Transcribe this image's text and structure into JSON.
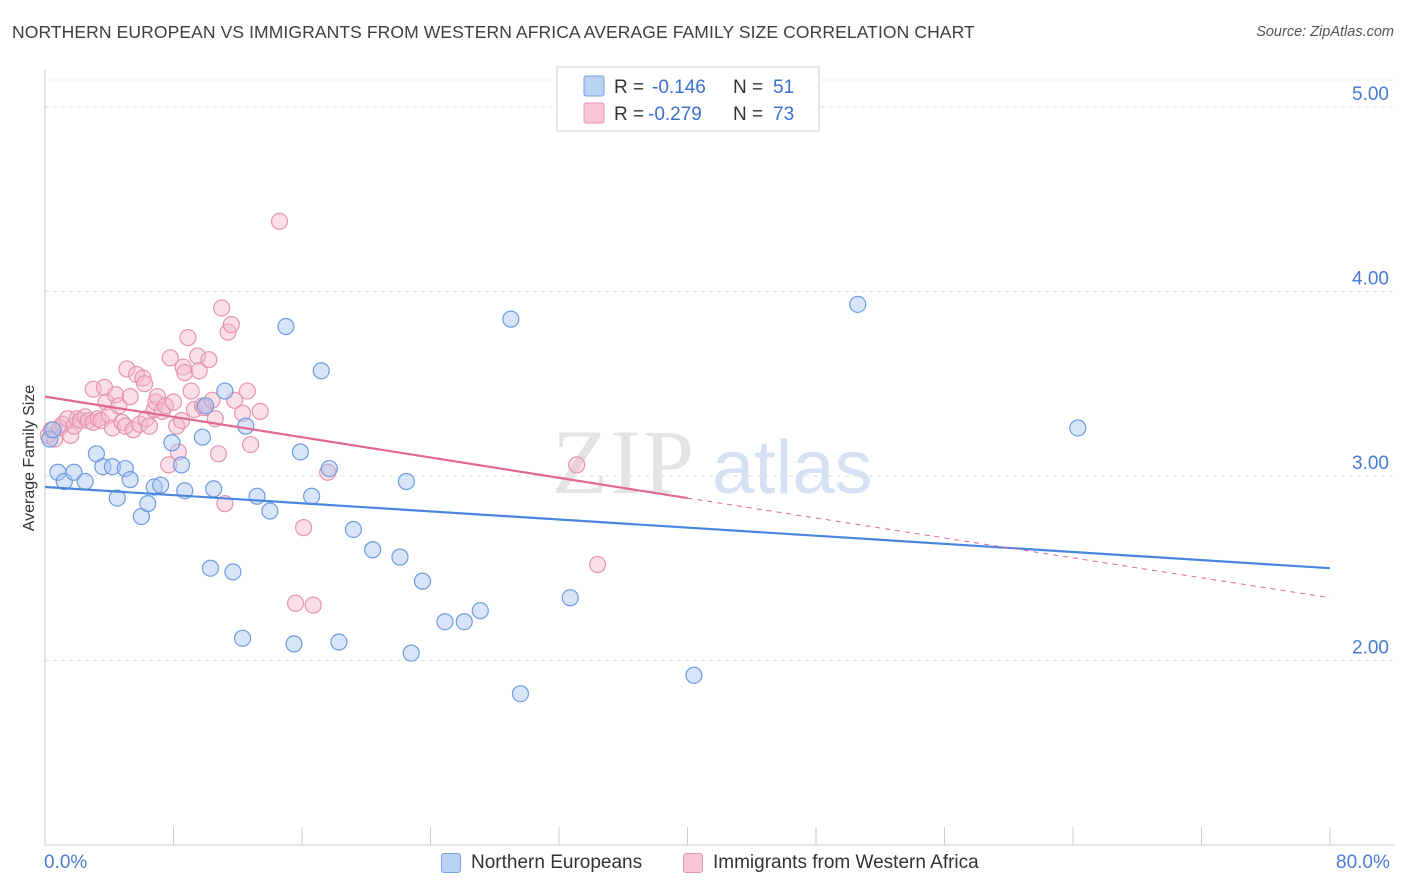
{
  "title": "NORTHERN EUROPEAN VS IMMIGRANTS FROM WESTERN AFRICA AVERAGE FAMILY SIZE CORRELATION CHART",
  "source": "Source: ZipAtlas.com",
  "watermark": {
    "zip": "ZIP",
    "atlas": "atlas"
  },
  "colors": {
    "blue": "#4a86e0",
    "blue_fill": "#a9c6f0",
    "pink": "#e06893",
    "pink_fill": "#f5b8cc",
    "grid": "#dddddd",
    "axis_text": "#4a7bd0"
  },
  "legend": {
    "rows": [
      {
        "r_label": "R =",
        "r_value": "-0.146",
        "n_label": "N =",
        "n_value": "51"
      },
      {
        "r_label": "R =",
        "r_value": "-0.279",
        "n_label": "N =",
        "n_value": "73"
      }
    ]
  },
  "bottom_legend": [
    "Northern Europeans",
    "Immigrants from Western Africa"
  ],
  "x_axis": {
    "min_label": "0.0%",
    "max_label": "80.0%"
  },
  "chart_data": {
    "type": "scatter",
    "title": "NORTHERN EUROPEAN VS IMMIGRANTS FROM WESTERN AFRICA AVERAGE FAMILY SIZE CORRELATION CHART",
    "xlabel": "",
    "ylabel": "Average Family Size",
    "xlim": [
      0,
      80
    ],
    "ylim": [
      1.0,
      5.2
    ],
    "yticks": [
      2.0,
      3.0,
      4.0,
      5.0
    ],
    "ytick_labels": [
      "2.00",
      "3.00",
      "4.00",
      "5.00"
    ],
    "grid": true,
    "legend_placement": "top-center",
    "series": [
      {
        "name": "Northern Europeans",
        "color": "#4a86e0",
        "trend": {
          "x": [
            0,
            80
          ],
          "y": [
            2.94,
            2.5
          ]
        },
        "points": [
          [
            0.3,
            3.2
          ],
          [
            0.5,
            3.25
          ],
          [
            0.8,
            3.02
          ],
          [
            1.2,
            2.97
          ],
          [
            1.8,
            3.02
          ],
          [
            2.5,
            2.97
          ],
          [
            3.2,
            3.12
          ],
          [
            3.6,
            3.05
          ],
          [
            4.2,
            3.05
          ],
          [
            4.5,
            2.88
          ],
          [
            5.0,
            3.04
          ],
          [
            5.3,
            2.98
          ],
          [
            6.0,
            2.78
          ],
          [
            6.4,
            2.85
          ],
          [
            6.8,
            2.94
          ],
          [
            7.2,
            2.95
          ],
          [
            7.9,
            3.18
          ],
          [
            8.5,
            3.06
          ],
          [
            8.7,
            2.92
          ],
          [
            9.8,
            3.21
          ],
          [
            10.0,
            3.38
          ],
          [
            10.3,
            2.5
          ],
          [
            10.5,
            2.93
          ],
          [
            11.2,
            3.46
          ],
          [
            11.7,
            2.48
          ],
          [
            12.3,
            2.12
          ],
          [
            12.5,
            3.27
          ],
          [
            13.2,
            2.89
          ],
          [
            14.0,
            2.81
          ],
          [
            15.0,
            3.81
          ],
          [
            15.5,
            2.09
          ],
          [
            15.9,
            3.13
          ],
          [
            16.6,
            2.89
          ],
          [
            17.2,
            3.57
          ],
          [
            17.7,
            3.04
          ],
          [
            18.3,
            2.1
          ],
          [
            19.2,
            2.71
          ],
          [
            20.4,
            2.6
          ],
          [
            22.1,
            2.56
          ],
          [
            22.5,
            2.97
          ],
          [
            22.8,
            2.04
          ],
          [
            23.5,
            2.43
          ],
          [
            24.9,
            2.21
          ],
          [
            26.1,
            2.21
          ],
          [
            27.1,
            2.27
          ],
          [
            29.0,
            3.85
          ],
          [
            29.6,
            1.82
          ],
          [
            32.7,
            2.34
          ],
          [
            40.4,
            1.92
          ],
          [
            50.6,
            3.93
          ],
          [
            64.3,
            3.26
          ]
        ]
      },
      {
        "name": "Immigrants from Western Africa",
        "color": "#e06893",
        "trend": {
          "x": [
            0,
            40
          ],
          "y": [
            3.43,
            2.88
          ]
        },
        "trend_dashed": {
          "x": [
            40,
            80
          ],
          "y": [
            2.88,
            2.34
          ]
        },
        "points": [
          [
            0.2,
            3.22
          ],
          [
            0.4,
            3.25
          ],
          [
            0.6,
            3.2
          ],
          [
            0.9,
            3.26
          ],
          [
            1.1,
            3.28
          ],
          [
            1.4,
            3.31
          ],
          [
            1.6,
            3.22
          ],
          [
            1.8,
            3.27
          ],
          [
            2.0,
            3.31
          ],
          [
            2.2,
            3.3
          ],
          [
            2.5,
            3.32
          ],
          [
            2.7,
            3.3
          ],
          [
            3.0,
            3.29
          ],
          [
            3.0,
            3.47
          ],
          [
            3.3,
            3.31
          ],
          [
            3.5,
            3.3
          ],
          [
            3.7,
            3.48
          ],
          [
            3.8,
            3.4
          ],
          [
            4.0,
            3.33
          ],
          [
            4.2,
            3.26
          ],
          [
            4.4,
            3.44
          ],
          [
            4.6,
            3.38
          ],
          [
            4.8,
            3.29
          ],
          [
            5.0,
            3.27
          ],
          [
            5.1,
            3.58
          ],
          [
            5.3,
            3.43
          ],
          [
            5.5,
            3.25
          ],
          [
            5.7,
            3.55
          ],
          [
            5.9,
            3.28
          ],
          [
            6.1,
            3.53
          ],
          [
            6.2,
            3.5
          ],
          [
            6.3,
            3.31
          ],
          [
            6.5,
            3.27
          ],
          [
            6.8,
            3.36
          ],
          [
            6.9,
            3.4
          ],
          [
            7.0,
            3.43
          ],
          [
            7.3,
            3.35
          ],
          [
            7.5,
            3.38
          ],
          [
            7.7,
            3.06
          ],
          [
            7.8,
            3.64
          ],
          [
            8.0,
            3.4
          ],
          [
            8.2,
            3.27
          ],
          [
            8.3,
            3.13
          ],
          [
            8.5,
            3.3
          ],
          [
            8.6,
            3.59
          ],
          [
            8.7,
            3.56
          ],
          [
            8.9,
            3.75
          ],
          [
            9.1,
            3.46
          ],
          [
            9.3,
            3.36
          ],
          [
            9.5,
            3.65
          ],
          [
            9.6,
            3.57
          ],
          [
            9.8,
            3.38
          ],
          [
            9.9,
            3.37
          ],
          [
            10.2,
            3.63
          ],
          [
            10.4,
            3.41
          ],
          [
            10.6,
            3.31
          ],
          [
            10.8,
            3.12
          ],
          [
            11.0,
            3.91
          ],
          [
            11.2,
            2.85
          ],
          [
            11.4,
            3.78
          ],
          [
            11.6,
            3.82
          ],
          [
            11.8,
            3.41
          ],
          [
            12.3,
            3.34
          ],
          [
            12.6,
            3.46
          ],
          [
            12.8,
            3.17
          ],
          [
            13.4,
            3.35
          ],
          [
            14.6,
            4.38
          ],
          [
            15.6,
            2.31
          ],
          [
            16.1,
            2.72
          ],
          [
            16.7,
            2.3
          ],
          [
            17.6,
            3.02
          ],
          [
            33.1,
            3.06
          ],
          [
            34.4,
            2.52
          ]
        ]
      }
    ]
  }
}
